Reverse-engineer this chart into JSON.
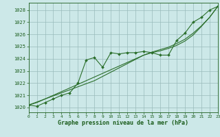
{
  "x_values": [
    0,
    1,
    2,
    3,
    4,
    5,
    6,
    7,
    8,
    9,
    10,
    11,
    12,
    13,
    14,
    15,
    16,
    17,
    18,
    19,
    20,
    21,
    22,
    23
  ],
  "pressure": [
    1020.2,
    1020.1,
    1020.4,
    1020.7,
    1021.0,
    1021.2,
    1022.0,
    1023.9,
    1024.1,
    1023.3,
    1024.5,
    1024.4,
    1024.5,
    1024.5,
    1024.6,
    1024.5,
    1024.3,
    1024.3,
    1025.5,
    1026.1,
    1027.0,
    1027.4,
    1028.0,
    1028.3
  ],
  "trend1": [
    1020.2,
    1020.4,
    1020.7,
    1021.0,
    1021.3,
    1021.6,
    1021.9,
    1022.2,
    1022.5,
    1022.8,
    1023.1,
    1023.4,
    1023.7,
    1024.0,
    1024.3,
    1024.55,
    1024.75,
    1024.95,
    1025.25,
    1025.6,
    1026.1,
    1026.7,
    1027.4,
    1028.3
  ],
  "trend2": [
    1020.2,
    1020.45,
    1020.7,
    1020.95,
    1021.2,
    1021.45,
    1021.7,
    1021.95,
    1022.2,
    1022.55,
    1022.9,
    1023.25,
    1023.6,
    1023.95,
    1024.3,
    1024.5,
    1024.65,
    1024.85,
    1025.1,
    1025.45,
    1025.95,
    1026.65,
    1027.4,
    1028.3
  ],
  "ylim": [
    1019.6,
    1028.6
  ],
  "yticks": [
    1020,
    1021,
    1022,
    1023,
    1024,
    1025,
    1026,
    1027,
    1028
  ],
  "xlim": [
    0,
    23
  ],
  "xticks": [
    0,
    1,
    2,
    3,
    4,
    5,
    6,
    7,
    8,
    9,
    10,
    11,
    12,
    13,
    14,
    15,
    16,
    17,
    18,
    19,
    20,
    21,
    22,
    23
  ],
  "xlabel": "Graphe pression niveau de la mer (hPa)",
  "line_color": "#2a6e2a",
  "bg_color": "#cce8e8",
  "grid_color": "#99bbbb",
  "text_color": "#1a5c1a"
}
